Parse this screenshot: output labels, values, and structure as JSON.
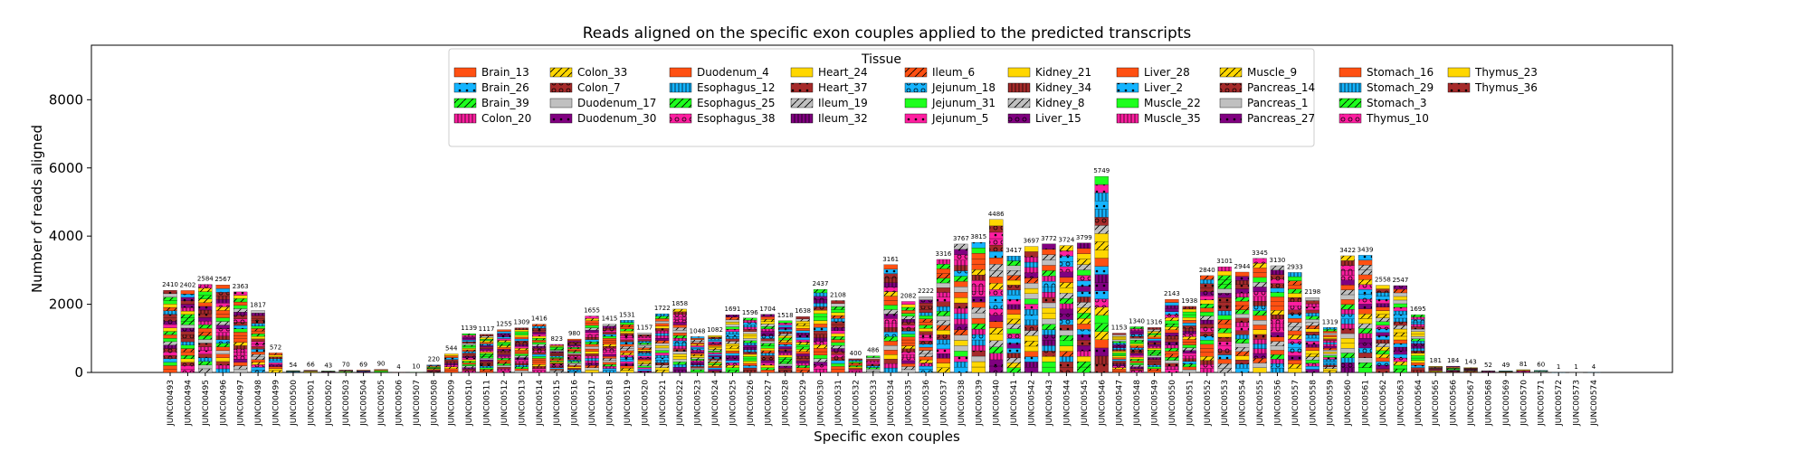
{
  "chart_data": {
    "type": "bar",
    "stacked": true,
    "title": "Reads aligned on the specific exon couples applied to the predicted transcripts",
    "xlabel": "Specific exon couples",
    "ylabel": "Number of reads aligned",
    "ylim": [
      0,
      9600
    ],
    "yticks": [
      0,
      2000,
      4000,
      6000,
      8000
    ],
    "legend": {
      "title": "Tissue",
      "placement": "top-center",
      "entries": [
        {
          "name": "Brain_13",
          "color": "#ff5012",
          "pattern": "none"
        },
        {
          "name": "Brain_26",
          "color": "#14b4ff",
          "pattern": "dot"
        },
        {
          "name": "Brain_39",
          "color": "#1eff1e",
          "pattern": "slash"
        },
        {
          "name": "Colon_20",
          "color": "#ff1ea0",
          "pattern": "bar"
        },
        {
          "name": "Colon_33",
          "color": "#ffd700",
          "pattern": "slash"
        },
        {
          "name": "Colon_7",
          "color": "#a52a2a",
          "pattern": "circle"
        },
        {
          "name": "Duodenum_17",
          "color": "#c0c0c0",
          "pattern": "none"
        },
        {
          "name": "Duodenum_30",
          "color": "#800080",
          "pattern": "dot"
        },
        {
          "name": "Duodenum_4",
          "color": "#ff5012",
          "pattern": "none"
        },
        {
          "name": "Esophagus_12",
          "color": "#14b4ff",
          "pattern": "bar"
        },
        {
          "name": "Esophagus_25",
          "color": "#1eff1e",
          "pattern": "slash"
        },
        {
          "name": "Esophagus_38",
          "color": "#ff1ea0",
          "pattern": "circle"
        },
        {
          "name": "Heart_24",
          "color": "#ffd700",
          "pattern": "none"
        },
        {
          "name": "Heart_37",
          "color": "#a52a2a",
          "pattern": "dot"
        },
        {
          "name": "Ileum_19",
          "color": "#c0c0c0",
          "pattern": "slash"
        },
        {
          "name": "Ileum_32",
          "color": "#800080",
          "pattern": "bar"
        },
        {
          "name": "Ileum_6",
          "color": "#ff5012",
          "pattern": "slash"
        },
        {
          "name": "Jejunum_18",
          "color": "#14b4ff",
          "pattern": "circle"
        },
        {
          "name": "Jejunum_31",
          "color": "#1eff1e",
          "pattern": "none"
        },
        {
          "name": "Jejunum_5",
          "color": "#ff1ea0",
          "pattern": "dot"
        },
        {
          "name": "Kidney_21",
          "color": "#ffd700",
          "pattern": "none"
        },
        {
          "name": "Kidney_34",
          "color": "#a52a2a",
          "pattern": "bar"
        },
        {
          "name": "Kidney_8",
          "color": "#c0c0c0",
          "pattern": "slash"
        },
        {
          "name": "Liver_15",
          "color": "#800080",
          "pattern": "circle"
        },
        {
          "name": "Liver_28",
          "color": "#ff5012",
          "pattern": "none"
        },
        {
          "name": "Liver_2",
          "color": "#14b4ff",
          "pattern": "dot"
        },
        {
          "name": "Muscle_22",
          "color": "#1eff1e",
          "pattern": "none"
        },
        {
          "name": "Muscle_35",
          "color": "#ff1ea0",
          "pattern": "bar"
        },
        {
          "name": "Muscle_9",
          "color": "#ffd700",
          "pattern": "slash"
        },
        {
          "name": "Pancreas_14",
          "color": "#a52a2a",
          "pattern": "circle"
        },
        {
          "name": "Pancreas_1",
          "color": "#c0c0c0",
          "pattern": "none"
        },
        {
          "name": "Pancreas_27",
          "color": "#800080",
          "pattern": "dot"
        },
        {
          "name": "Stomach_16",
          "color": "#ff5012",
          "pattern": "none"
        },
        {
          "name": "Stomach_29",
          "color": "#14b4ff",
          "pattern": "bar"
        },
        {
          "name": "Stomach_3",
          "color": "#1eff1e",
          "pattern": "slash"
        },
        {
          "name": "Thymus_10",
          "color": "#ff1ea0",
          "pattern": "circle"
        },
        {
          "name": "Thymus_23",
          "color": "#ffd700",
          "pattern": "none"
        },
        {
          "name": "Thymus_36",
          "color": "#a52a2a",
          "pattern": "dot"
        }
      ]
    },
    "categories": [
      "JUNC00493",
      "JUNC00494",
      "JUNC00495",
      "JUNC00496",
      "JUNC00497",
      "JUNC00498",
      "JUNC00499",
      "JUNC00500",
      "JUNC00501",
      "JUNC00502",
      "JUNC00503",
      "JUNC00504",
      "JUNC00505",
      "JUNC00506",
      "JUNC00507",
      "JUNC00508",
      "JUNC00509",
      "JUNC00510",
      "JUNC00511",
      "JUNC00512",
      "JUNC00513",
      "JUNC00514",
      "JUNC00515",
      "JUNC00516",
      "JUNC00517",
      "JUNC00518",
      "JUNC00519",
      "JUNC00520",
      "JUNC00521",
      "JUNC00522",
      "JUNC00523",
      "JUNC00524",
      "JUNC00525",
      "JUNC00526",
      "JUNC00527",
      "JUNC00528",
      "JUNC00529",
      "JUNC00530",
      "JUNC00531",
      "JUNC00532",
      "JUNC00533",
      "JUNC00534",
      "JUNC00535",
      "JUNC00536",
      "JUNC00537",
      "JUNC00538",
      "JUNC00539",
      "JUNC00540",
      "JUNC00541",
      "JUNC00542",
      "JUNC00543",
      "JUNC00544",
      "JUNC00545",
      "JUNC00546",
      "JUNC00547",
      "JUNC00548",
      "JUNC00549",
      "JUNC00550",
      "JUNC00551",
      "JUNC00552",
      "JUNC00553",
      "JUNC00554",
      "JUNC00555",
      "JUNC00556",
      "JUNC00557",
      "JUNC00558",
      "JUNC00559",
      "JUNC00560",
      "JUNC00561",
      "JUNC00562",
      "JUNC00563",
      "JUNC00564",
      "JUNC00565",
      "JUNC00566",
      "JUNC00567",
      "JUNC00568",
      "JUNC00569",
      "JUNC00570",
      "JUNC00571",
      "JUNC00572",
      "JUNC00573",
      "JUNC00574"
    ],
    "totals": [
      2410,
      2402,
      2584,
      2567,
      2363,
      1817,
      572,
      54,
      66,
      43,
      70,
      69,
      90,
      4,
      10,
      220,
      544,
      1139,
      1117,
      1255,
      1309,
      1416,
      823,
      980,
      1655,
      1415,
      1531,
      1157,
      1722,
      1858,
      1048,
      1082,
      1691,
      1596,
      1704,
      1518,
      1638,
      2437,
      2108,
      400,
      486,
      3161,
      2082,
      2222,
      3316,
      3767,
      3815,
      4486,
      3417,
      3697,
      3772,
      3724,
      3799,
      5749,
      1153,
      1340,
      1316,
      2143,
      1938,
      2840,
      3101,
      2944,
      3345,
      3130,
      2933,
      2198,
      1319,
      3422,
      3439,
      2558,
      2547,
      1695,
      181,
      184,
      143,
      52,
      49,
      81,
      60,
      1,
      1,
      4
    ]
  }
}
